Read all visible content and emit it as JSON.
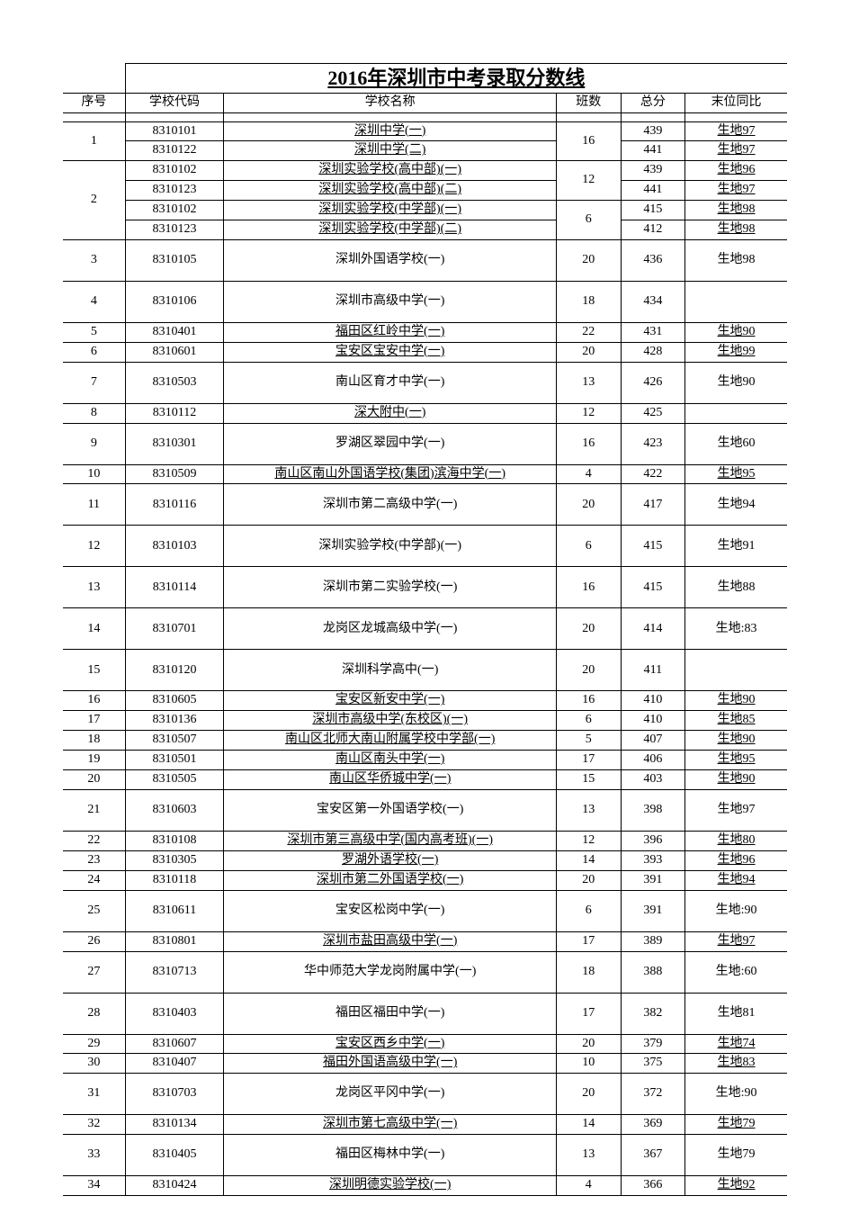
{
  "title": "2016年深圳市中考录取分数线",
  "headers": {
    "seq": "序号",
    "code": "学校代码",
    "name": "学校名称",
    "cls": "班数",
    "score": "总分",
    "note": "末位同比"
  },
  "colors": {
    "text": "#000000",
    "border": "#000000",
    "bg": "#ffffff"
  },
  "fonts": {
    "title_size": 22,
    "body_size": 14
  },
  "rows": [
    {
      "type": "title"
    },
    {
      "type": "header"
    },
    {
      "type": "gap"
    },
    {
      "type": "data",
      "seq": "1",
      "seq_rowspan": 2,
      "code": "8310101",
      "name": "深圳中学(一)",
      "name_u": true,
      "cls": "16",
      "cls_rowspan": 2,
      "score": "439",
      "note": "生地97",
      "note_u": true
    },
    {
      "type": "data",
      "code": "8310122",
      "name": "深圳中学(二)",
      "name_u": true,
      "score": "441",
      "note": "生地97",
      "note_u": true
    },
    {
      "type": "data",
      "seq": "2",
      "seq_rowspan": 4,
      "code": "8310102",
      "name": "深圳实验学校(高中部)(一)",
      "name_u": true,
      "cls": "12",
      "cls_rowspan": 2,
      "score": "439",
      "note": "生地96",
      "note_u": true
    },
    {
      "type": "data",
      "code": "8310123",
      "name": "深圳实验学校(高中部)(二)",
      "name_u": true,
      "score": "441",
      "note": "生地97",
      "note_u": true
    },
    {
      "type": "data",
      "code": "8310102",
      "name": "深圳实验学校(中学部)(一)",
      "name_u": true,
      "cls": "6",
      "cls_rowspan": 2,
      "score": "415",
      "note": "生地98",
      "note_u": true
    },
    {
      "type": "data",
      "code": "8310123",
      "name": "深圳实验学校(中学部)(二)",
      "name_u": true,
      "score": "412",
      "note": "生地98",
      "note_u": true
    },
    {
      "type": "data",
      "seq": "3",
      "code": "8310105",
      "name": "深圳外国语学校(一)",
      "cls": "20",
      "score": "436",
      "note": "生地98",
      "tall": true
    },
    {
      "type": "data",
      "seq": "4",
      "code": "8310106",
      "name": "深圳市高级中学(一)",
      "cls": "18",
      "score": "434",
      "note": "",
      "tall": true
    },
    {
      "type": "data",
      "seq": "5",
      "code": "8310401",
      "name": "福田区红岭中学(一)",
      "name_u": true,
      "cls": "22",
      "score": "431",
      "note": "生地90",
      "note_u": true
    },
    {
      "type": "data",
      "seq": "6",
      "code": "8310601",
      "name": "宝安区宝安中学(一)",
      "name_u": true,
      "cls": "20",
      "score": "428",
      "note": "生地99",
      "note_u": true
    },
    {
      "type": "data",
      "seq": "7",
      "code": "8310503",
      "name": "南山区育才中学(一)",
      "cls": "13",
      "score": "426",
      "note": "生地90",
      "tall": true
    },
    {
      "type": "data",
      "seq": "8",
      "code": "8310112",
      "name": "深大附中(一)",
      "name_u": true,
      "cls": "12",
      "score": "425",
      "note": ""
    },
    {
      "type": "data",
      "seq": "9",
      "code": "8310301",
      "name": "罗湖区翠园中学(一)",
      "cls": "16",
      "score": "423",
      "note": "生地60",
      "tall": true
    },
    {
      "type": "data",
      "seq": "10",
      "code": "8310509",
      "name": "南山区南山外国语学校(集团)滨海中学(一)",
      "name_u": true,
      "cls": "4",
      "score": "422",
      "note": "生地95",
      "note_u": true
    },
    {
      "type": "data",
      "seq": "11",
      "code": "8310116",
      "name": "深圳市第二高级中学(一)",
      "cls": "20",
      "score": "417",
      "note": "生地94",
      "tall": true
    },
    {
      "type": "data",
      "seq": "12",
      "code": "8310103",
      "name": "深圳实验学校(中学部)(一)",
      "cls": "6",
      "score": "415",
      "note": "生地91",
      "tall": true
    },
    {
      "type": "data",
      "seq": "13",
      "code": "8310114",
      "name": "深圳市第二实验学校(一)",
      "cls": "16",
      "score": "415",
      "note": "生地88",
      "tall": true
    },
    {
      "type": "data",
      "seq": "14",
      "code": "8310701",
      "name": "龙岗区龙城高级中学(一)",
      "cls": "20",
      "score": "414",
      "note": "生地:83",
      "tall": true
    },
    {
      "type": "data",
      "seq": "15",
      "code": "8310120",
      "name": "深圳科学高中(一)",
      "cls": "20",
      "score": "411",
      "note": "",
      "tall": true
    },
    {
      "type": "data",
      "seq": "16",
      "code": "8310605",
      "name": "宝安区新安中学(一)",
      "name_u": true,
      "cls": "16",
      "score": "410",
      "note": "生地90",
      "note_u": true
    },
    {
      "type": "data",
      "seq": "17",
      "code": "8310136",
      "name": "深圳市高级中学(东校区)(一)",
      "name_u": true,
      "cls": "6",
      "score": "410",
      "note": "生地85",
      "note_u": true
    },
    {
      "type": "data",
      "seq": "18",
      "code": "8310507",
      "name": "南山区北师大南山附属学校中学部(一)",
      "name_u": true,
      "cls": "5",
      "score": "407",
      "note": "生地90",
      "note_u": true
    },
    {
      "type": "data",
      "seq": "19",
      "code": "8310501",
      "name": "南山区南头中学(一)",
      "name_u": true,
      "cls": "17",
      "score": "406",
      "note": "生地95",
      "note_u": true
    },
    {
      "type": "data",
      "seq": "20",
      "code": "8310505",
      "name": "南山区华侨城中学(一)",
      "name_u": true,
      "cls": "15",
      "score": "403",
      "note": "生地90",
      "note_u": true
    },
    {
      "type": "data",
      "seq": "21",
      "code": "8310603",
      "name": "宝安区第一外国语学校(一)",
      "cls": "13",
      "score": "398",
      "note": "生地97",
      "tall": true
    },
    {
      "type": "data",
      "seq": "22",
      "code": "8310108",
      "name": "深圳市第三高级中学(国内高考班)(一)",
      "name_u": true,
      "cls": "12",
      "score": "396",
      "note": "生地80",
      "note_u": true
    },
    {
      "type": "data",
      "seq": "23",
      "code": "8310305",
      "name": "罗湖外语学校(一)",
      "name_u": true,
      "cls": "14",
      "score": "393",
      "note": "生地96",
      "note_u": true
    },
    {
      "type": "data",
      "seq": "24",
      "code": "8310118",
      "name": "深圳市第二外国语学校(一)",
      "name_u": true,
      "cls": "20",
      "score": "391",
      "note": "生地94",
      "note_u": true
    },
    {
      "type": "data",
      "seq": "25",
      "code": "8310611",
      "name": "宝安区松岗中学(一)",
      "cls": "6",
      "score": "391",
      "note": "生地:90",
      "tall": true
    },
    {
      "type": "data",
      "seq": "26",
      "code": "8310801",
      "name": "深圳市盐田高级中学(一)",
      "name_u": true,
      "cls": "17",
      "score": "389",
      "note": "生地97",
      "note_u": true
    },
    {
      "type": "data",
      "seq": "27",
      "code": "8310713",
      "name": "华中师范大学龙岗附属中学(一)",
      "cls": "18",
      "score": "388",
      "note": "生地:60",
      "tall": true
    },
    {
      "type": "data",
      "seq": "28",
      "code": "8310403",
      "name": "福田区福田中学(一)",
      "cls": "17",
      "score": "382",
      "note": "生地81",
      "tall": true
    },
    {
      "type": "data",
      "seq": "29",
      "code": "8310607",
      "name": "宝安区西乡中学(一)",
      "name_u": true,
      "cls": "20",
      "score": "379",
      "note": "生地74",
      "note_u": true
    },
    {
      "type": "data",
      "seq": "30",
      "code": "8310407",
      "name": "福田外国语高级中学(一)",
      "name_u": true,
      "cls": "10",
      "score": "375",
      "note": "生地83",
      "note_u": true
    },
    {
      "type": "data",
      "seq": "31",
      "code": "8310703",
      "name": "龙岗区平冈中学(一)",
      "cls": "20",
      "score": "372",
      "note": "生地:90",
      "tall": true
    },
    {
      "type": "data",
      "seq": "32",
      "code": "8310134",
      "name": "深圳市第七高级中学(一)",
      "name_u": true,
      "cls": "14",
      "score": "369",
      "note": "生地79",
      "note_u": true
    },
    {
      "type": "data",
      "seq": "33",
      "code": "8310405",
      "name": "福田区梅林中学(一)",
      "cls": "13",
      "score": "367",
      "note": "生地79",
      "tall": true
    },
    {
      "type": "data",
      "seq": "34",
      "code": "8310424",
      "name": "深圳明德实验学校(一)",
      "name_u": true,
      "cls": "4",
      "score": "366",
      "note": "生地92",
      "note_u": true
    }
  ]
}
